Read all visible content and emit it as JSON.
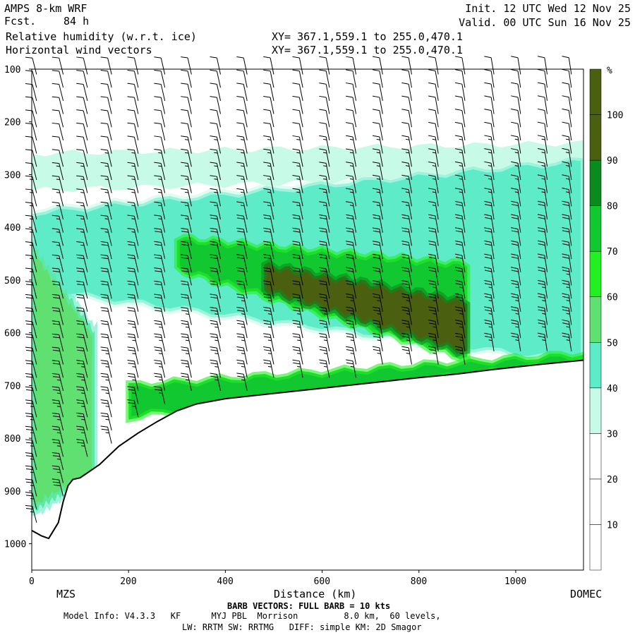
{
  "header": {
    "model": "AMPS 8-km WRF",
    "fcst_label": "Fcst.",
    "fcst_value": "84 h",
    "init": "Init. 12 UTC Wed 12 Nov 25",
    "valid": "Valid. 00 UTC Sun 16 Nov 25",
    "field1": "Relative humidity (w.r.t. ice)",
    "field2": "Horizontal wind vectors",
    "xy1": "XY= 367.1,559.1 to 255.0,470.1",
    "xy2": "XY= 367.1,559.1 to 255.0,470.1"
  },
  "footer": {
    "left_station": "MZS",
    "right_station": "DOMEC",
    "xlabel": "Distance (km)",
    "barb_note": "BARB VECTORS: FULL BARB = 10 kts",
    "model_info_line1": "Model Info: V4.3.3   KF      MYJ PBL  Morrison         8.0 km,  60 levels,",
    "model_info_line2": "LW: RRTM SW: RRTMG   DIFF: simple KM: 2D Smagor"
  },
  "chart_data": {
    "type": "heatmap",
    "title": "Relative humidity (w.r.t. ice)",
    "xlabel": "Distance (km)",
    "ylabel": "",
    "xlim": [
      0,
      1140
    ],
    "ylim_hpa": [
      1050,
      100
    ],
    "x_ticks": [
      0,
      200,
      400,
      600,
      800,
      1000
    ],
    "y_ticks": [
      100,
      200,
      300,
      400,
      500,
      600,
      700,
      800,
      900,
      1000
    ],
    "colorbar": {
      "unit": "%",
      "levels": [
        10,
        20,
        30,
        40,
        50,
        60,
        70,
        80,
        90,
        100
      ],
      "colors": [
        "#ffffff",
        "#ffffff",
        "#ffffff",
        "#c8fae8",
        "#5eebc8",
        "#5fe070",
        "#23f023",
        "#12c830",
        "#0b8a1e",
        "#4a5f10"
      ]
    },
    "terrain_hpa": [
      [
        0,
        975
      ],
      [
        20,
        985
      ],
      [
        35,
        990
      ],
      [
        55,
        960
      ],
      [
        65,
        920
      ],
      [
        75,
        890
      ],
      [
        85,
        878
      ],
      [
        100,
        875
      ],
      [
        140,
        850
      ],
      [
        180,
        815
      ],
      [
        220,
        790
      ],
      [
        260,
        768
      ],
      [
        300,
        748
      ],
      [
        340,
        735
      ],
      [
        400,
        725
      ],
      [
        500,
        715
      ],
      [
        600,
        705
      ],
      [
        700,
        695
      ],
      [
        800,
        685
      ],
      [
        880,
        678
      ],
      [
        950,
        670
      ],
      [
        1050,
        660
      ],
      [
        1140,
        652
      ]
    ],
    "rh_bands": [
      {
        "name": "upper moist layer",
        "rh": 40,
        "x": [
          0,
          1140
        ],
        "top_hpa": [
          260,
          240
        ],
        "bottom_hpa": [
          330,
          300
        ]
      },
      {
        "name": "mid moist layer",
        "rh": 50,
        "x": [
          0,
          1140
        ],
        "top_hpa": [
          370,
          270
        ],
        "bottom_hpa": [
          520,
          660
        ]
      },
      {
        "name": "mid core",
        "rh": 80,
        "x": [
          300,
          900
        ],
        "top_hpa": [
          420,
          470
        ],
        "bottom_hpa": [
          480,
          650
        ]
      },
      {
        "name": "dense core",
        "rh": 100,
        "x": [
          480,
          900
        ],
        "top_hpa": [
          470,
          540
        ],
        "bottom_hpa": [
          520,
          640
        ]
      },
      {
        "name": "low-level moist",
        "rh": 80,
        "x": [
          200,
          1140
        ],
        "top_hpa": [
          700,
          640
        ],
        "bottom_hpa": [
          760,
          655
        ]
      },
      {
        "name": "coastal column",
        "rh": 60,
        "x": [
          0,
          130
        ],
        "top_hpa": [
          430,
          600
        ],
        "bottom_hpa": [
          940,
          870
        ]
      }
    ],
    "wind_barbs": {
      "note": "BARB VECTORS: FULL BARB = 10 kts",
      "x_columns_km": [
        10,
        65,
        115,
        165,
        220,
        275,
        330,
        390,
        445,
        500,
        560,
        615,
        670,
        725,
        785,
        840,
        895,
        955,
        1010,
        1065,
        1115
      ],
      "pressure_spacing_hpa": 25,
      "speed_kts_upper": 10,
      "speed_kts_lower": 30
    }
  }
}
